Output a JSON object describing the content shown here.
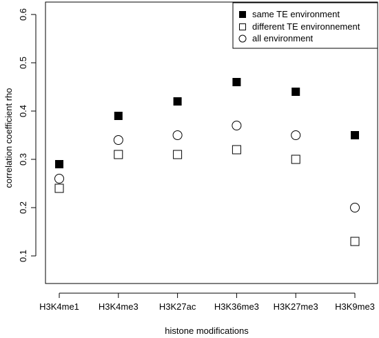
{
  "chart_data": {
    "type": "scatter",
    "xlabel": "histone modifications",
    "ylabel": "correlation coefficient rho",
    "ylim": [
      0.05,
      0.6
    ],
    "yticks": [
      "0.1",
      "0.2",
      "0.3",
      "0.4",
      "0.5",
      "0.6"
    ],
    "categories": [
      "H3K4me1",
      "H3K4me3",
      "H3K27ac",
      "H3K36me3",
      "H3K27me3",
      "H3K9me3"
    ],
    "category_colors": [
      "#1a8a1a",
      "#1a8a1a",
      "#1a8a1a",
      "#1a8a1a",
      "#e8211a",
      "#e8211a"
    ],
    "legend_position": "top-right",
    "series": [
      {
        "name": "same TE environment",
        "marker": "filled-square",
        "values": [
          0.29,
          0.39,
          0.42,
          0.46,
          0.44,
          0.35
        ]
      },
      {
        "name": "different TE environnement",
        "marker": "open-square",
        "values": [
          0.24,
          0.31,
          0.31,
          0.32,
          0.3,
          0.13
        ]
      },
      {
        "name": "all environment",
        "marker": "open-circle",
        "values": [
          0.26,
          0.34,
          0.35,
          0.37,
          0.35,
          0.2
        ]
      }
    ]
  }
}
